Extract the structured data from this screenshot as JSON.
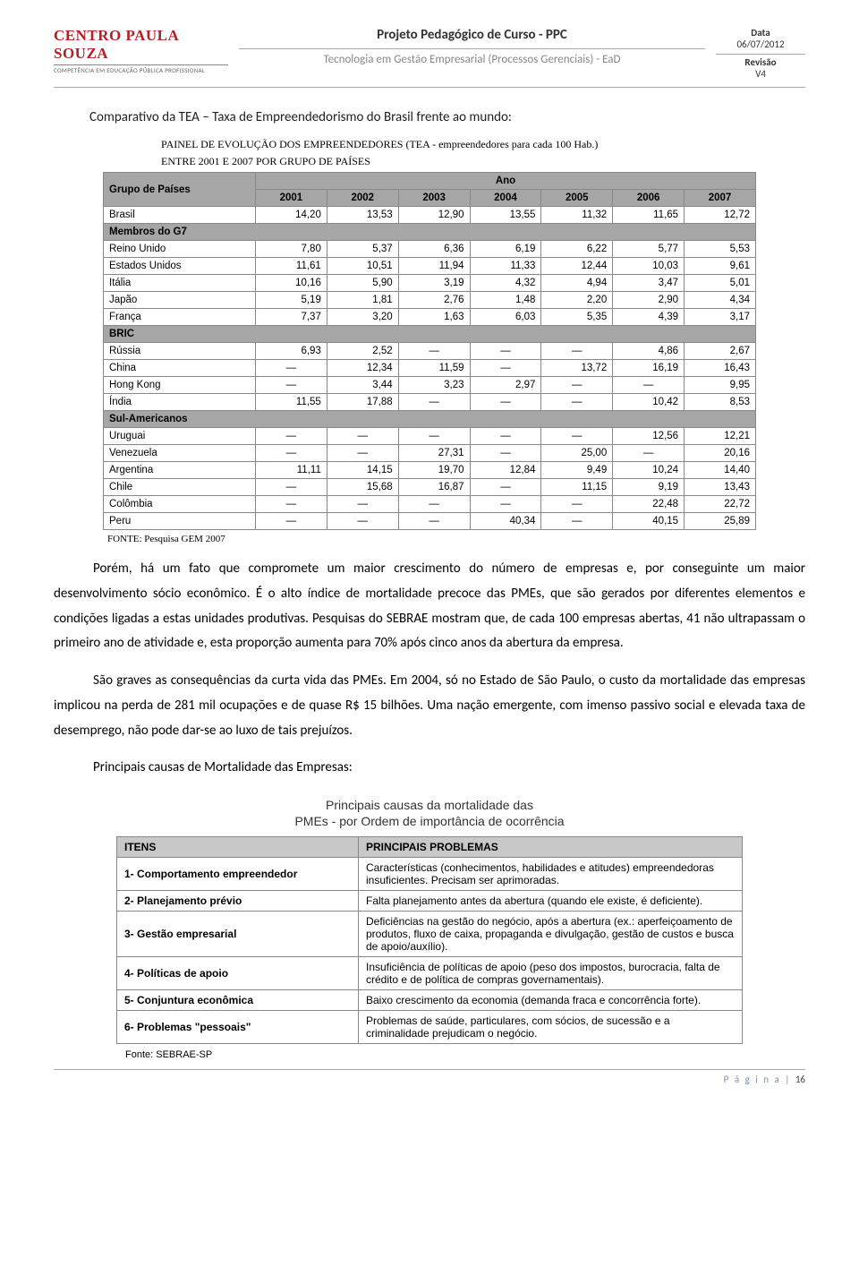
{
  "header": {
    "logo_main": "CENTRO PAULA SOUZA",
    "logo_sub": "COMPETÊNCIA EM EDUCAÇÃO PÚBLICA PROFISSIONAL",
    "title": "Projeto Pedagógico de Curso - PPC",
    "subtitle": "Tecnologia em Gestão Empresarial (Processos Gerenciais) - EaD",
    "data_label": "Data",
    "data_value": "06/07/2012",
    "rev_label": "Revisão",
    "rev_value": "V4"
  },
  "section_title": "Comparativo da TEA – Taxa de Empreendedorismo do Brasil frente ao mundo:",
  "panel_caption_1": "PAINEL DE EVOLUÇÃO DOS EMPREENDEDORES  (TEA - empreendedores para cada 100 Hab.)",
  "panel_caption_2": "ENTRE  2001 E 2007 POR GRUPO DE PAÍSES",
  "table1": {
    "col_group_label": "Grupo de Países",
    "year_label": "Ano",
    "years": [
      "2001",
      "2002",
      "2003",
      "2004",
      "2005",
      "2006",
      "2007"
    ],
    "rows": [
      {
        "grp": true,
        "label": "Grupo de Países"
      },
      {
        "label": "Brasil",
        "vals": [
          "14,20",
          "13,53",
          "12,90",
          "13,55",
          "11,32",
          "11,65",
          "12,72"
        ]
      },
      {
        "grp": true,
        "label": "Membros do G7"
      },
      {
        "label": "Reino Unido",
        "vals": [
          "7,80",
          "5,37",
          "6,36",
          "6,19",
          "6,22",
          "5,77",
          "5,53"
        ]
      },
      {
        "label": "Estados Unidos",
        "vals": [
          "11,61",
          "10,51",
          "11,94",
          "11,33",
          "12,44",
          "10,03",
          "9,61"
        ]
      },
      {
        "label": "Itália",
        "vals": [
          "10,16",
          "5,90",
          "3,19",
          "4,32",
          "4,94",
          "3,47",
          "5,01"
        ]
      },
      {
        "label": "Japão",
        "vals": [
          "5,19",
          "1,81",
          "2,76",
          "1,48",
          "2,20",
          "2,90",
          "4,34"
        ]
      },
      {
        "label": "França",
        "vals": [
          "7,37",
          "3,20",
          "1,63",
          "6,03",
          "5,35",
          "4,39",
          "3,17"
        ]
      },
      {
        "grp": true,
        "label": "BRIC"
      },
      {
        "label": "Rússia",
        "vals": [
          "6,93",
          "2,52",
          "—",
          "—",
          "—",
          "4,86",
          "2,67"
        ]
      },
      {
        "label": "China",
        "vals": [
          "—",
          "12,34",
          "11,59",
          "—",
          "13,72",
          "16,19",
          "16,43"
        ]
      },
      {
        "label": "Hong Kong",
        "vals": [
          "—",
          "3,44",
          "3,23",
          "2,97",
          "—",
          "—",
          "9,95"
        ]
      },
      {
        "label": "Índia",
        "vals": [
          "11,55",
          "17,88",
          "—",
          "—",
          "—",
          "10,42",
          "8,53"
        ]
      },
      {
        "grp": true,
        "label": "Sul-Americanos"
      },
      {
        "label": "Uruguai",
        "vals": [
          "—",
          "—",
          "—",
          "—",
          "—",
          "12,56",
          "12,21"
        ]
      },
      {
        "label": "Venezuela",
        "vals": [
          "—",
          "—",
          "27,31",
          "—",
          "25,00",
          "—",
          "20,16"
        ]
      },
      {
        "label": "Argentina",
        "vals": [
          "11,11",
          "14,15",
          "19,70",
          "12,84",
          "9,49",
          "10,24",
          "14,40"
        ]
      },
      {
        "label": "Chile",
        "vals": [
          "—",
          "15,68",
          "16,87",
          "—",
          "11,15",
          "9,19",
          "13,43"
        ]
      },
      {
        "label": "Colômbia",
        "vals": [
          "—",
          "—",
          "—",
          "—",
          "—",
          "22,48",
          "22,72"
        ]
      },
      {
        "label": "Peru",
        "vals": [
          "—",
          "—",
          "—",
          "40,34",
          "—",
          "40,15",
          "25,89"
        ]
      }
    ],
    "fonte": "FONTE: Pesquisa GEM 2007"
  },
  "para1": "Porém, há um fato que compromete um maior crescimento do número de empresas e, por conseguinte um maior desenvolvimento sócio econômico. É o alto índice de mortalidade precoce das PMEs, que são gerados por diferentes elementos e condições ligadas a estas unidades produtivas. Pesquisas do SEBRAE mostram que, de cada 100 empresas abertas, 41 não ultrapassam o primeiro ano de atividade e, esta proporção aumenta para 70% após cinco anos da abertura da empresa.",
  "para2": "São graves as consequências da curta vida das PMEs. Em 2004, só no Estado de São Paulo, o custo da mortalidade das empresas implicou na perda de 281 mil ocupações e de quase R$ 15 bilhões. Uma nação emergente, com imenso passivo social e elevada taxa de desemprego, não pode dar-se ao luxo de tais prejuízos.",
  "para3": "Principais causas de Mortalidade das Empresas:",
  "t2_title_1": "Principais causas da mortalidade das",
  "t2_title_2": "PMEs - por Ordem de importância de ocorrência",
  "table2": {
    "h_item": "ITENS",
    "h_prob": "PRINCIPAIS PROBLEMAS",
    "rows": [
      {
        "item": "1- Comportamento empreendedor",
        "prob": "Características (conhecimentos, habilidades e atitudes) empreendedoras insuficientes. Precisam ser aprimoradas."
      },
      {
        "item": "2- Planejamento prévio",
        "prob": "Falta planejamento antes da abertura (quando ele existe, é deficiente)."
      },
      {
        "item": "3- Gestão empresarial",
        "prob": "Deficiências na gestão do negócio, após a abertura (ex.: aperfeiçoamento de produtos, fluxo de caixa, propaganda e divulgação, gestão de custos e busca de apoio/auxílio)."
      },
      {
        "item": "4- Políticas de apoio",
        "prob": "Insuficiência de políticas de apoio (peso dos impostos, burocracia, falta de crédito e de política de compras governamentais)."
      },
      {
        "item": "5- Conjuntura econômica",
        "prob": "Baixo crescimento da economia (demanda fraca e concorrência forte)."
      },
      {
        "item": "6- Problemas  \"pessoais\"",
        "prob": "Problemas de saúde, particulares, com sócios, de sucessão e a criminalidade prejudicam o negócio."
      }
    ],
    "fonte": "Fonte: SEBRAE-SP"
  },
  "footer": {
    "word_page": "P á g i n a",
    "sep": " | ",
    "num": "16"
  }
}
